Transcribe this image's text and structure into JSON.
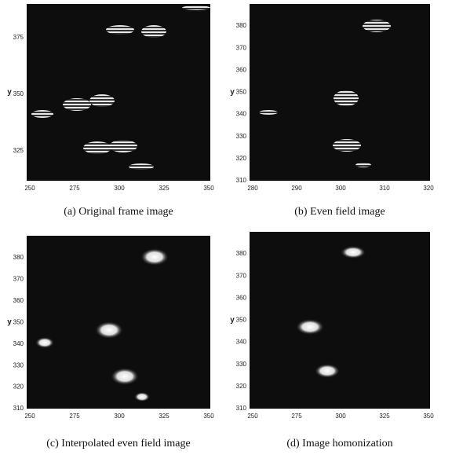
{
  "panels": [
    {
      "caption": "(a) Original frame image",
      "y_label": "y",
      "yticks": [
        "375",
        "350",
        "325"
      ],
      "xticks": [
        "250",
        "275",
        "300",
        "325",
        "350"
      ]
    },
    {
      "caption": "(b) Even field image",
      "y_label": "y",
      "yticks": [
        "380",
        "370",
        "360",
        "350",
        "340",
        "330",
        "320",
        "310"
      ],
      "xticks": [
        "280",
        "290",
        "300",
        "310",
        "320"
      ]
    },
    {
      "caption": "(c) Interpolated even field image",
      "y_label": "y",
      "yticks": [
        "380",
        "370",
        "360",
        "350",
        "340",
        "330",
        "320",
        "310"
      ],
      "xticks": [
        "250",
        "275",
        "300",
        "325",
        "350"
      ]
    },
    {
      "caption": "(d) Image homonization",
      "y_label": "y",
      "yticks": [
        "380",
        "370",
        "360",
        "350",
        "340",
        "330",
        "320",
        "310"
      ],
      "xticks": [
        "250",
        "275",
        "300",
        "325",
        "350"
      ]
    }
  ]
}
